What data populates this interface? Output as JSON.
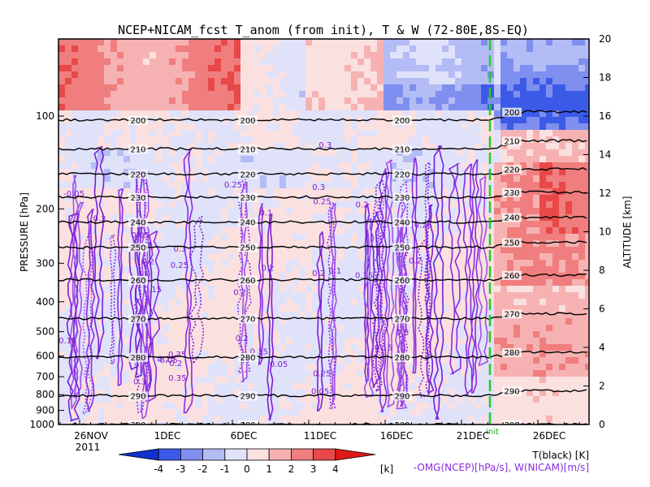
{
  "chart_data": {
    "type": "heatmap",
    "title": "NCEP+NICAM_fcst T_anom (from init), T & W  (72-80E,8S-EQ)",
    "xlabel": "",
    "x_ticks": [
      "26NOV",
      "1DEC",
      "6DEC",
      "11DEC",
      "16DEC",
      "21DEC",
      "26DEC"
    ],
    "x_year": "2011",
    "init_label": "init",
    "ylabel_left": "PRESSURE [hPa]",
    "yticks_left": [
      "100",
      "200",
      "300",
      "400",
      "500",
      "600",
      "700",
      "800",
      "900",
      "1000"
    ],
    "ylim_left": [
      1000,
      60
    ],
    "ylabel_right": "ALTITUDE [km]",
    "yticks_right": [
      "0",
      "2",
      "4",
      "6",
      "8",
      "10",
      "12",
      "14",
      "16",
      "18",
      "20"
    ],
    "ylim_right": [
      0,
      20
    ],
    "colorbar": {
      "ticks": [
        "-4",
        "-3",
        "-2",
        "-1",
        "0",
        "1",
        "2",
        "3",
        "4"
      ],
      "unit": "[k]",
      "colors": [
        "#1030d0",
        "#3c5ae8",
        "#7f8ff0",
        "#b4bcf6",
        "#e0e2fa",
        "#fbe0e0",
        "#f6b2b2",
        "#f07e7e",
        "#e84848",
        "#e01818"
      ]
    },
    "legend": {
      "line1": "T(black) [K]",
      "line2": "-OMG(NCEP)[hPa/s], W(NICAM)[m/s]",
      "line1_color": "#000000",
      "line2_color": "#8a2be2"
    },
    "temperature_contours": [
      {
        "label": "200",
        "altitude_km": 15.8
      },
      {
        "label": "210",
        "altitude_km": 14.3
      },
      {
        "label": "220",
        "altitude_km": 13.0
      },
      {
        "label": "230",
        "altitude_km": 11.8
      },
      {
        "label": "240",
        "altitude_km": 10.5
      },
      {
        "label": "250",
        "altitude_km": 9.2
      },
      {
        "label": "260",
        "altitude_km": 7.5
      },
      {
        "label": "270",
        "altitude_km": 5.5
      },
      {
        "label": "280",
        "altitude_km": 3.5
      },
      {
        "label": "290",
        "altitude_km": 1.5
      },
      {
        "label": "300",
        "altitude_km": 0.0
      }
    ],
    "w_contour_labels": [
      "0.05",
      "0.1",
      "0.15",
      "0.2",
      "0.25",
      "0.3",
      "0.35",
      "-0.05"
    ]
  }
}
